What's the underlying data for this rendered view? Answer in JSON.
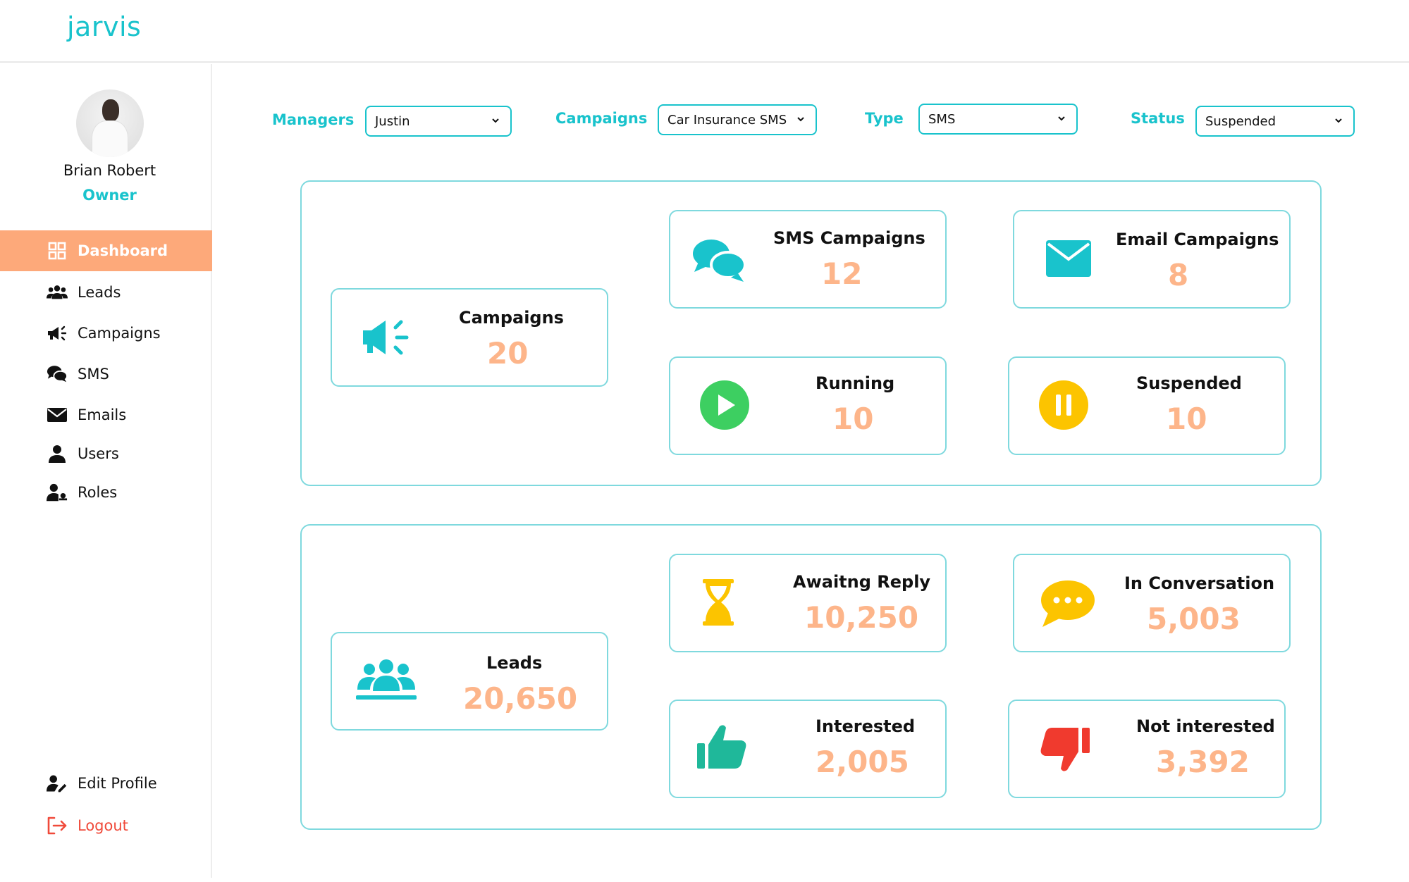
{
  "app": {
    "logo": "jarvis"
  },
  "user": {
    "name": "Brian Robert",
    "role": "Owner"
  },
  "sidebar": {
    "items": [
      {
        "label": "Dashboard",
        "icon": "dashboard-grid-icon",
        "active": true
      },
      {
        "label": "Leads",
        "icon": "group-icon"
      },
      {
        "label": "Campaigns",
        "icon": "megaphone-icon"
      },
      {
        "label": "SMS",
        "icon": "chat-bubbles-icon"
      },
      {
        "label": "Emails",
        "icon": "envelope-icon"
      },
      {
        "label": "Users",
        "icon": "user-icon"
      },
      {
        "label": "Roles",
        "icon": "user-key-icon"
      }
    ],
    "bottom": [
      {
        "label": "Edit Profile",
        "icon": "user-edit-icon"
      },
      {
        "label": "Logout",
        "icon": "logout-icon"
      }
    ]
  },
  "filters": {
    "managers": {
      "label": "Managers",
      "value": "Justin"
    },
    "campaigns": {
      "label": "Campaigns",
      "value": "Car Insurance SMS"
    },
    "type": {
      "label": "Type",
      "value": "SMS"
    },
    "status": {
      "label": "Status",
      "value": "Suspended"
    }
  },
  "campaign_stats": {
    "total": {
      "title": "Campaigns",
      "value": "20"
    },
    "sms": {
      "title": "SMS Campaigns",
      "value": "12"
    },
    "email": {
      "title": "Email Campaigns",
      "value": "8"
    },
    "running": {
      "title": "Running",
      "value": "10"
    },
    "suspended": {
      "title": "Suspended",
      "value": "10"
    }
  },
  "lead_stats": {
    "total": {
      "title": "Leads",
      "value": "20,650"
    },
    "awaiting": {
      "title": "Awaitng Reply",
      "value": "10,250"
    },
    "conversation": {
      "title": "In Conversation",
      "value": "5,003"
    },
    "interested": {
      "title": "Interested",
      "value": "2,005"
    },
    "not_interested": {
      "title": "Not interested",
      "value": "3,392"
    }
  },
  "colors": {
    "accent": "#19c3cc",
    "active_nav": "#fda97a",
    "value": "#fdb58a",
    "running": "#3dcf61",
    "suspended": "#fcc400",
    "not_interested": "#f03a2e",
    "interested": "#1fb89a",
    "logout": "#f04a3a"
  }
}
